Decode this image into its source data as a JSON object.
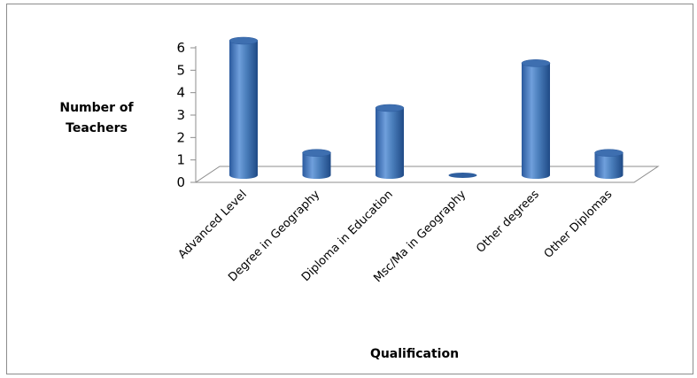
{
  "chart_data": {
    "type": "bar",
    "categories": [
      "Advanced Level",
      "Degree in Geography",
      "Diploma in Education",
      "Msc/Ma in Geography",
      "Other degrees",
      "Other Diplomas"
    ],
    "values": [
      6,
      1,
      3,
      0,
      5,
      1
    ],
    "ylabel_lines": [
      "Number of",
      "Teachers"
    ],
    "xlabel": "Qualification",
    "ylim": [
      0,
      6
    ],
    "yticks": [
      0,
      1,
      2,
      3,
      4,
      5,
      6
    ],
    "grid": false,
    "legend": "none",
    "bar_color": "#4a7ebb",
    "bar_style": "3d-cylinder"
  }
}
